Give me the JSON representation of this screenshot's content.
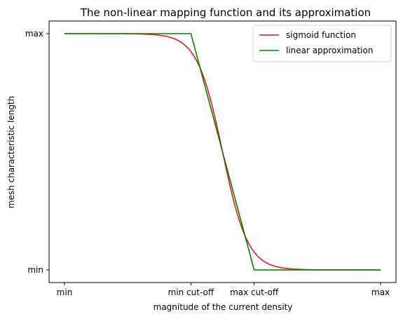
{
  "chart_data": {
    "type": "line",
    "title": "The non-linear mapping function and its approximation",
    "xlabel": "magnitude of the current density",
    "ylabel": "mesh characteristic length",
    "xlim": [
      0,
      1
    ],
    "ylim": [
      0,
      1
    ],
    "x_ticks": [
      {
        "value": 0.0,
        "label": "min"
      },
      {
        "value": 0.4,
        "label": "min cut-off"
      },
      {
        "value": 0.6,
        "label": "max cut-off"
      },
      {
        "value": 1.0,
        "label": "max"
      }
    ],
    "y_ticks": [
      {
        "value": 0.0,
        "label": "min"
      },
      {
        "value": 1.0,
        "label": "max"
      }
    ],
    "grid": false,
    "legend_position": "top-right",
    "series": [
      {
        "name": "sigmoid function",
        "color": "#e41a1c",
        "kind": "sigmoid",
        "center": 0.5,
        "steepness": 25,
        "x_range": [
          0,
          1
        ]
      },
      {
        "name": "linear approximation",
        "color": "#008000",
        "kind": "polyline",
        "x": [
          0.0,
          0.4,
          0.6,
          1.0
        ],
        "y": [
          1.0,
          1.0,
          0.0,
          0.0
        ]
      }
    ]
  }
}
